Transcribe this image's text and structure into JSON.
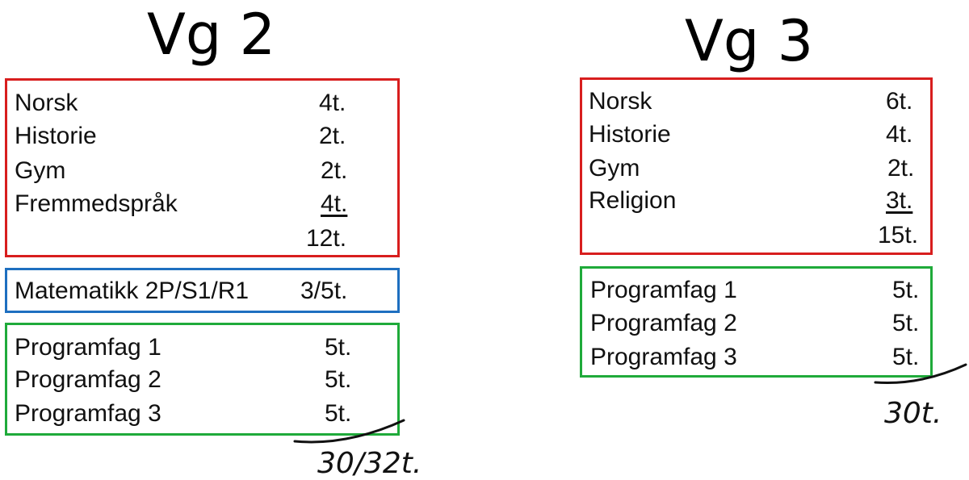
{
  "vg2": {
    "title": "Vg 2",
    "common": [
      {
        "subject": "Norsk",
        "hours": "4t."
      },
      {
        "subject": "Historie",
        "hours": "2t."
      },
      {
        "subject": "Gym",
        "hours": "2t."
      },
      {
        "subject": "Fremmedspråk",
        "hours": "4t."
      }
    ],
    "common_total": "12t.",
    "math": {
      "subject": "Matematikk 2P/S1/R1",
      "hours": "3/5t."
    },
    "program": [
      {
        "subject": "Programfag 1",
        "hours": "5t."
      },
      {
        "subject": "Programfag 2",
        "hours": "5t."
      },
      {
        "subject": "Programfag 3",
        "hours": "5t."
      }
    ],
    "grand_total": "30/32t."
  },
  "vg3": {
    "title": "Vg 3",
    "common": [
      {
        "subject": "Norsk",
        "hours": "6t."
      },
      {
        "subject": "Historie",
        "hours": "4t."
      },
      {
        "subject": "Gym",
        "hours": "2t."
      },
      {
        "subject": "Religion",
        "hours": "3t."
      }
    ],
    "common_total": "15t.",
    "program": [
      {
        "subject": "Programfag 1",
        "hours": "5t."
      },
      {
        "subject": "Programfag 2",
        "hours": "5t."
      },
      {
        "subject": "Programfag 3",
        "hours": "5t."
      }
    ],
    "grand_total": "30t."
  },
  "colors": {
    "common_box": "#d81e1e",
    "math_box": "#1e6fc0",
    "program_box": "#1faa3a"
  }
}
